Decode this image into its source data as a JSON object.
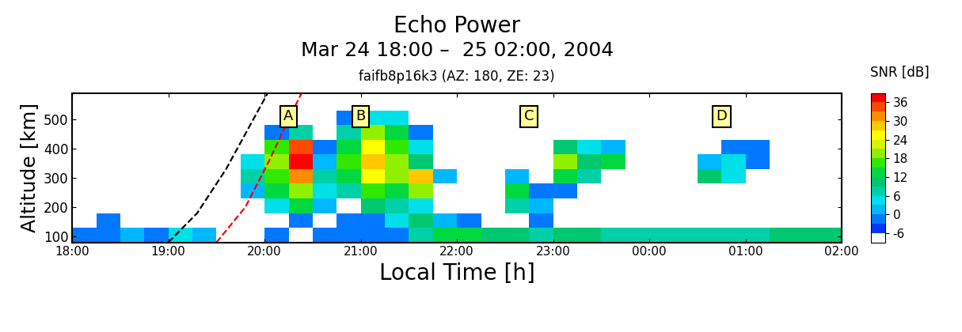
{
  "chart_data": {
    "type": "heatmap",
    "title": "Echo Power",
    "subtitle": "Mar 24 18:00 –  25 02:00, 2004",
    "caption": "faifb8p16k3 (AZ: 180, ZE: 23)",
    "x_label": "Local Time [h]",
    "y_label": "Altitude [km]",
    "xlim": [
      18,
      26
    ],
    "xticks": [
      {
        "value": 18,
        "label": "18:00"
      },
      {
        "value": 19,
        "label": "19:00"
      },
      {
        "value": 20,
        "label": "20:00"
      },
      {
        "value": 21,
        "label": "21:00"
      },
      {
        "value": 22,
        "label": "22:00"
      },
      {
        "value": 23,
        "label": "23:00"
      },
      {
        "value": 24,
        "label": "00:00"
      },
      {
        "value": 25,
        "label": "01:00"
      },
      {
        "value": 26,
        "label": "02:00"
      }
    ],
    "ylim": [
      80,
      590
    ],
    "yticks": [
      100,
      200,
      300,
      400,
      500
    ],
    "x_edges": [
      18.0,
      18.25,
      18.5,
      18.75,
      19.0,
      19.25,
      19.5,
      19.75,
      20.0,
      20.25,
      20.5,
      20.75,
      21.0,
      21.25,
      21.5,
      21.75,
      22.0,
      22.25,
      22.5,
      22.75,
      23.0,
      23.25,
      23.5,
      23.75,
      24.0,
      24.25,
      24.5,
      24.75,
      25.0,
      25.25,
      25.5,
      25.75,
      26.0
    ],
    "y_edges": [
      80,
      130,
      180,
      230,
      280,
      330,
      380,
      430,
      480,
      530,
      580
    ],
    "cells": [
      [
        -3,
        -3,
        0,
        -3,
        3,
        0,
        null,
        null,
        -3,
        null,
        -3,
        -3,
        -3,
        -3,
        6,
        12,
        12,
        9,
        9,
        6,
        9,
        9,
        6,
        6,
        6,
        6,
        6,
        6,
        6,
        9,
        9,
        9
      ],
      [
        null,
        -3,
        null,
        null,
        null,
        null,
        null,
        null,
        null,
        -3,
        null,
        -3,
        -3,
        3,
        9,
        0,
        -3,
        null,
        null,
        -3,
        null,
        null,
        null,
        null,
        null,
        null,
        null,
        null,
        null,
        null,
        null,
        null
      ],
      [
        null,
        null,
        null,
        null,
        null,
        null,
        null,
        null,
        3,
        12,
        0,
        null,
        9,
        6,
        3,
        null,
        null,
        null,
        6,
        0,
        null,
        null,
        null,
        null,
        null,
        null,
        null,
        null,
        null,
        null,
        null,
        null
      ],
      [
        null,
        null,
        null,
        null,
        null,
        null,
        null,
        0,
        12,
        18,
        3,
        6,
        15,
        12,
        18,
        null,
        null,
        null,
        12,
        -3,
        -3,
        null,
        null,
        null,
        null,
        null,
        null,
        null,
        null,
        null,
        null,
        null
      ],
      [
        null,
        null,
        null,
        null,
        null,
        null,
        null,
        6,
        15,
        30,
        6,
        12,
        24,
        18,
        27,
        0,
        null,
        null,
        0,
        null,
        12,
        6,
        null,
        null,
        null,
        null,
        9,
        3,
        null,
        null,
        null,
        null
      ],
      [
        null,
        null,
        null,
        null,
        null,
        null,
        null,
        3,
        18,
        36,
        0,
        15,
        27,
        18,
        9,
        null,
        null,
        null,
        null,
        null,
        18,
        9,
        12,
        null,
        null,
        null,
        0,
        3,
        -3,
        null,
        null,
        null
      ],
      [
        null,
        null,
        null,
        null,
        null,
        null,
        null,
        null,
        15,
        33,
        -3,
        12,
        24,
        15,
        3,
        null,
        null,
        null,
        null,
        null,
        9,
        3,
        0,
        null,
        null,
        null,
        null,
        -3,
        -3,
        null,
        null,
        null
      ],
      [
        null,
        null,
        null,
        null,
        null,
        null,
        null,
        null,
        -3,
        6,
        null,
        6,
        18,
        12,
        -3,
        null,
        null,
        null,
        null,
        null,
        null,
        null,
        null,
        null,
        null,
        null,
        null,
        null,
        null,
        null,
        null,
        null
      ],
      [
        null,
        null,
        null,
        null,
        null,
        null,
        null,
        null,
        null,
        null,
        null,
        -3,
        3,
        3,
        null,
        null,
        null,
        null,
        null,
        null,
        null,
        null,
        null,
        null,
        null,
        null,
        null,
        null,
        null,
        null,
        null,
        null
      ],
      [
        null,
        null,
        null,
        null,
        null,
        null,
        null,
        null,
        null,
        null,
        null,
        null,
        null,
        null,
        null,
        null,
        null,
        null,
        null,
        null,
        null,
        null,
        null,
        null,
        null,
        null,
        null,
        null,
        null,
        null,
        null,
        null
      ]
    ],
    "colorbar": {
      "label": "SNR [dB]",
      "range": [
        -9,
        39
      ],
      "ticks": [
        -6,
        0,
        6,
        12,
        18,
        24,
        30,
        36
      ]
    },
    "lines": [
      {
        "color": "black",
        "line_style": "dashed",
        "x": [
          19.0,
          19.3,
          19.6,
          19.85,
          20.05
        ],
        "y": [
          80,
          180,
          330,
          480,
          600
        ]
      },
      {
        "color": "red",
        "line_style": "dashed",
        "x": [
          19.5,
          19.8,
          20.05,
          20.25,
          20.4
        ],
        "y": [
          80,
          200,
          360,
          500,
          600
        ]
      }
    ],
    "annotations": [
      {
        "text": "A",
        "x": 20.25,
        "y": 510
      },
      {
        "text": "B",
        "x": 21.0,
        "y": 510
      },
      {
        "text": "C",
        "x": 22.75,
        "y": 510
      },
      {
        "text": "D",
        "x": 24.75,
        "y": 510
      }
    ]
  }
}
